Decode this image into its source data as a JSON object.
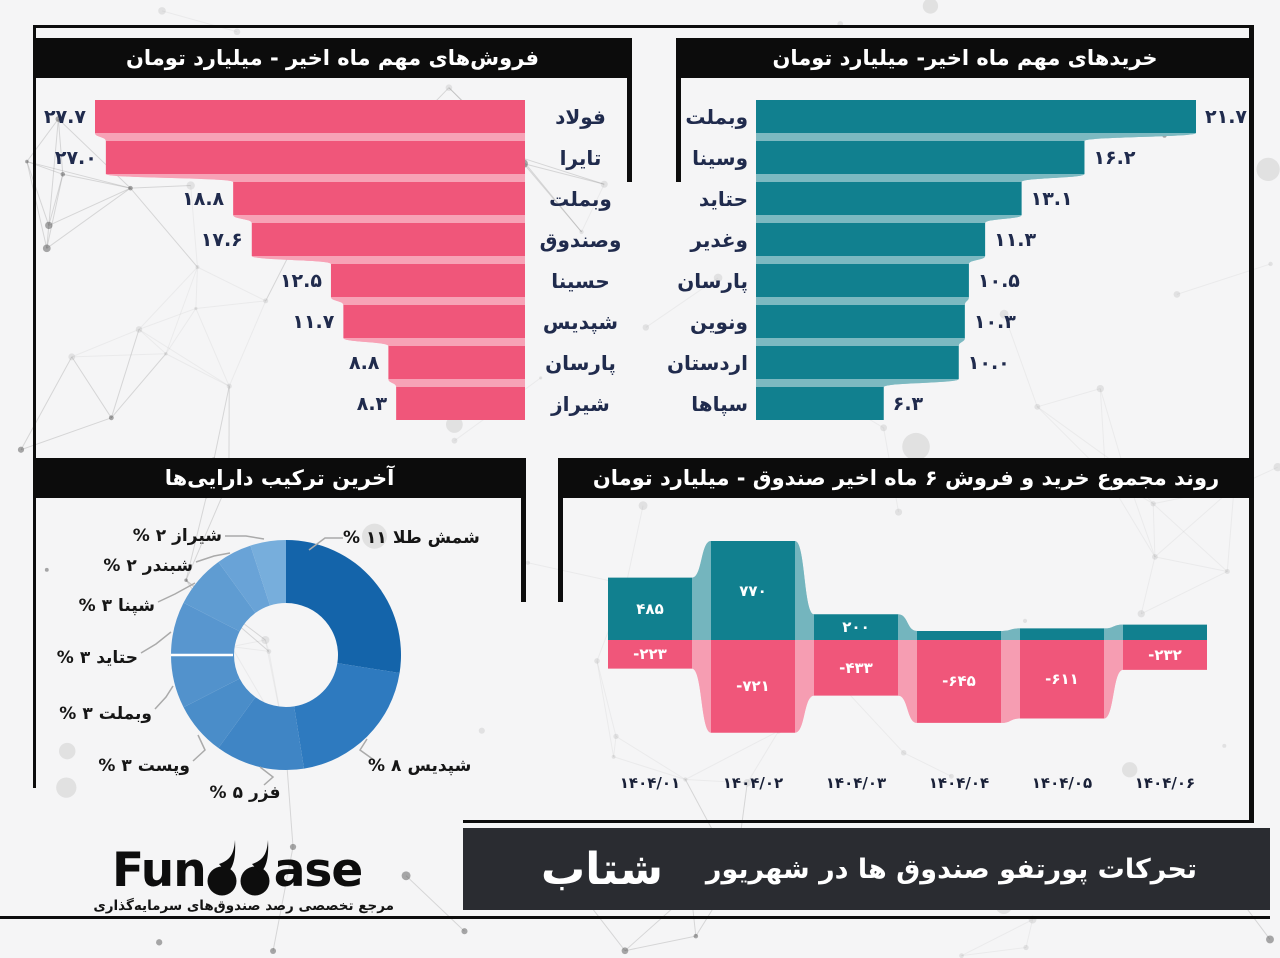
{
  "background": {
    "base_color": "#f5f5f6",
    "pattern": "plexus-network",
    "pattern_color": "#9a9a9a"
  },
  "frame_color": "#0d0d0d",
  "label_color": "#202b4d",
  "chart_data": [
    {
      "id": "sales",
      "type": "bar",
      "orientation": "horizontal",
      "anchor": "right",
      "title": "فروش‌های مهم ماه اخیر - میلیارد تومان",
      "bar_color": "#f0567a",
      "categories": [
        "فولاد",
        "تایرا",
        "وبملت",
        "وصندوق",
        "حسینا",
        "شپدیس",
        "پارسان",
        "شیراز"
      ],
      "values": [
        27.7,
        27.0,
        18.8,
        17.6,
        12.5,
        11.7,
        8.8,
        8.3
      ],
      "value_labels": [
        "۲۷.۷",
        "۲۷.۰",
        "۱۸.۸",
        "۱۷.۶",
        "۱۲.۵",
        "۱۱.۷",
        "۸.۸",
        "۸.۳"
      ],
      "xlim": [
        0,
        27.7
      ]
    },
    {
      "id": "purchases",
      "type": "bar",
      "orientation": "horizontal",
      "anchor": "left",
      "title": "خریدهای مهم ماه اخیر- میلیارد تومان",
      "bar_color": "#11808f",
      "categories": [
        "وبملت",
        "وسینا",
        "حتاید",
        "وغدیر",
        "پارسان",
        "ونوین",
        "اردستان",
        "سپاها"
      ],
      "values": [
        21.7,
        16.2,
        13.1,
        11.3,
        10.5,
        10.3,
        10.0,
        6.3
      ],
      "value_labels": [
        "۲۱.۷",
        "۱۶.۲",
        "۱۳.۱",
        "۱۱.۳",
        "۱۰.۵",
        "۱۰.۳",
        "۱۰.۰",
        "۶.۳"
      ],
      "xlim": [
        0,
        21.7
      ]
    },
    {
      "id": "assets",
      "type": "pie",
      "title": "آخرین ترکیب دارایی‌ها",
      "percent_sign": "%",
      "slices": [
        {
          "label": "شمش طلا",
          "pct": 11,
          "pct_fa": "۱۱",
          "color": "#1464aa"
        },
        {
          "label": "شپدیس",
          "pct": 8,
          "pct_fa": "۸",
          "color": "#2e7abf"
        },
        {
          "label": "فزر",
          "pct": 5,
          "pct_fa": "۵",
          "color": "#3f85c5"
        },
        {
          "label": "وپست",
          "pct": 3,
          "pct_fa": "۳",
          "color": "#4a8dc9"
        },
        {
          "label": "وبملت",
          "pct": 3,
          "pct_fa": "۳",
          "color": "#5292cc"
        },
        {
          "label": "حتاید",
          "pct": 3,
          "pct_fa": "۳",
          "color": "#5896cf"
        },
        {
          "label": "شپنا",
          "pct": 3,
          "pct_fa": "۳",
          "color": "#5f9cd2"
        },
        {
          "label": "شبندر",
          "pct": 2,
          "pct_fa": "۲",
          "color": "#69a3d7"
        },
        {
          "label": "شیراز",
          "pct": 2,
          "pct_fa": "۲",
          "color": "#77aedc"
        }
      ]
    },
    {
      "id": "flow",
      "type": "area",
      "title": "روند مجموع خرید و فروش ۶ ماه اخیر صندوق - میلیارد تومان",
      "x_labels": [
        "۱۴۰۴/۰۱",
        "۱۴۰۴/۰۲",
        "۱۴۰۴/۰۳",
        "۱۴۰۴/۰۴",
        "۱۴۰۴/۰۵",
        "۱۴۰۴/۰۶"
      ],
      "series": [
        {
          "name": "buys",
          "color": "#11808f",
          "values": [
            485,
            770,
            200,
            70,
            90,
            120
          ],
          "labels": [
            "۴۸۵",
            "۷۷۰",
            "۲۰۰",
            "",
            "",
            ""
          ]
        },
        {
          "name": "sells",
          "color": "#f0567a",
          "values": [
            -223,
            -721,
            -433,
            -645,
            -611,
            -232
          ],
          "labels": [
            "-۲۲۳",
            "-۷۲۱",
            "-۴۳۳",
            "-۶۴۵",
            "-۶۱۱",
            "-۲۳۲"
          ]
        }
      ]
    }
  ],
  "footer": {
    "bar_color": "#2a2c31",
    "badge": "شتاب",
    "title": "تحرکات پورتفو صندوق ها در شهریور",
    "logo": {
      "pre": "Fun",
      "mid": "db",
      "post": "ase",
      "full": "Fundbase",
      "tagline": "مرجع تخصصی رصد صندوق‌های سرمایه‌گذاری"
    }
  }
}
